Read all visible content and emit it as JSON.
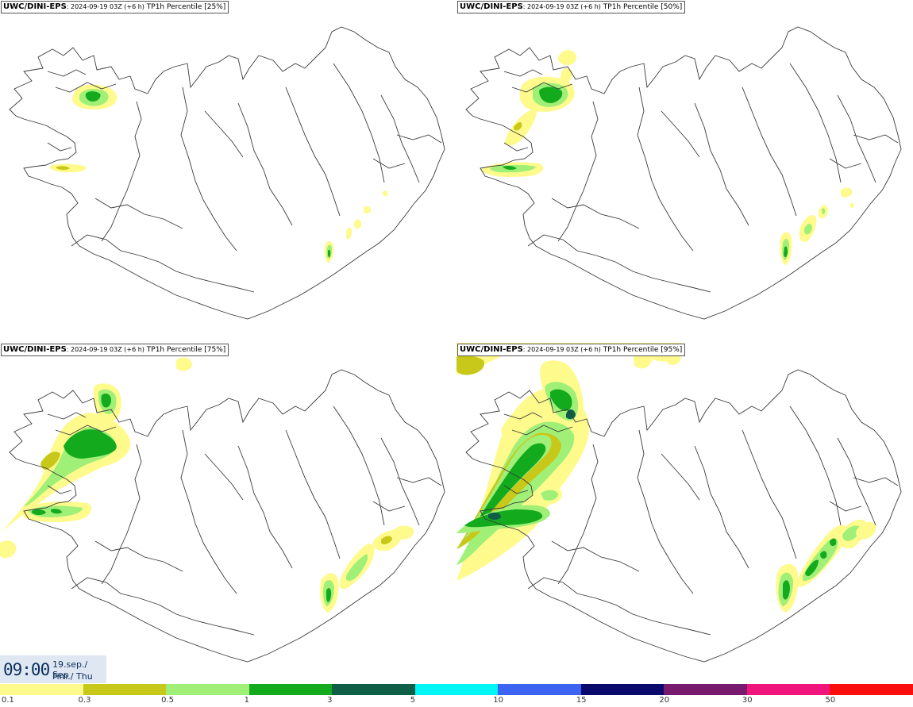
{
  "panels": [
    {
      "source": "UWC/DINI-EPS",
      "run": ": 2024-09-19 03Z (+6 h)",
      "param": "TP1h Percentile [25%]"
    },
    {
      "source": "UWC/DINI-EPS",
      "run": ": 2024-09-19 03Z (+6 h)",
      "param": "TP1h Percentile [50%]"
    },
    {
      "source": "UWC/DINI-EPS",
      "run": ": 2024-09-19 03Z (+6 h)",
      "param": "TP1h Percentile [75%]"
    },
    {
      "source": "UWC/DINI-EPS",
      "run": ": 2024-09-19 03Z (+6 h)",
      "param": "TP1h Percentile [95%]"
    }
  ],
  "valid_time": {
    "time": "09:00",
    "date": "19.sep./ Sep",
    "weekday": "Fim./ Thu"
  },
  "legend": {
    "colors": [
      "#fffa8c",
      "#c8c81a",
      "#a0f078",
      "#14aa1e",
      "#0f5f46",
      "#00f5f5",
      "#3c64f0",
      "#0a0a6e",
      "#781a6e",
      "#f0147d",
      "#fa0f0f"
    ],
    "labels": [
      "0.1",
      "0.3",
      "0.5",
      "1",
      "3",
      "5",
      "10",
      "15",
      "20",
      "30",
      "50"
    ]
  },
  "map_colors": {
    "outline": "#3a3a3a",
    "light_yellow": "#fffa8c",
    "olive": "#c8c81a",
    "light_green": "#a0f078",
    "green": "#14aa1e",
    "dark_green": "#0f5f46"
  }
}
